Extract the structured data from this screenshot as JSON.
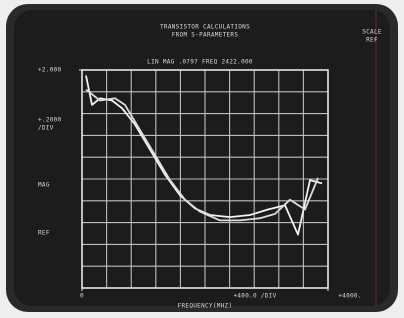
{
  "chart_data": {
    "type": "line",
    "title": [
      "TRANSISTOR CALCULATIONS",
      "FROM S-PARAMETERS"
    ],
    "subtitle": "LIN MAG .0797 FREQ 2422.000",
    "left_labels": [
      "+.2000",
      "/DIV",
      "MAG",
      "REF"
    ],
    "right_labels": [
      "SCALE",
      "REF"
    ],
    "x_scale_label": "+400.0 /DIV",
    "xlabel": "FREQUENCY(MHZ)",
    "xlim": [
      0,
      4000
    ],
    "ylim": [
      0,
      2
    ],
    "xticks": [
      0,
      {
        "value": 4000,
        "label": "+4000."
      }
    ],
    "yticks": [
      {
        "value": 2,
        "label": "+2.000"
      }
    ],
    "grid_divisions": 10,
    "series": [
      {
        "color": "#f2f2f2",
        "x": [
          65,
          163,
          293,
          488,
          650,
          862,
          1106,
          1350,
          1593,
          1837,
          2081,
          2407,
          2732,
          3024,
          3301,
          3512,
          3707,
          3902
        ],
        "values": [
          1.95,
          1.68,
          1.74,
          1.72,
          1.65,
          1.5,
          1.27,
          1.04,
          0.85,
          0.73,
          0.67,
          0.65,
          0.67,
          0.72,
          0.76,
          0.49,
          0.99,
          0.96
        ]
      },
      {
        "color": "#dcdcdc",
        "x": [
          65,
          293,
          537,
          699,
          943,
          1187,
          1431,
          1675,
          1919,
          2244,
          2569,
          2894,
          3138,
          3382,
          3626,
          3837
        ],
        "values": [
          1.82,
          1.72,
          1.74,
          1.68,
          1.45,
          1.22,
          0.99,
          0.81,
          0.7,
          0.62,
          0.62,
          0.64,
          0.68,
          0.81,
          0.72,
          1.01
        ]
      }
    ]
  }
}
